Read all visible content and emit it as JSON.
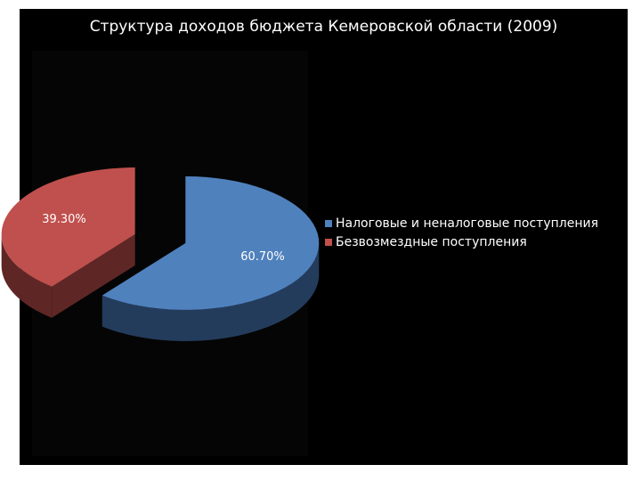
{
  "chart_data": {
    "type": "pie",
    "title": "Структура доходов бюджета Кемеровской области (2009)",
    "slices": [
      {
        "name": "Налоговые и неналоговые поступления",
        "value": 60.7,
        "label": "60.70%",
        "color": "#4f81bd",
        "side_color": "#243c5c"
      },
      {
        "name": "Безвозмездные поступления",
        "value": 39.3,
        "label": "39.30%",
        "color": "#c0504d",
        "side_color": "#5e2726"
      }
    ],
    "legend_position": "right",
    "style": "3d-exploded"
  }
}
